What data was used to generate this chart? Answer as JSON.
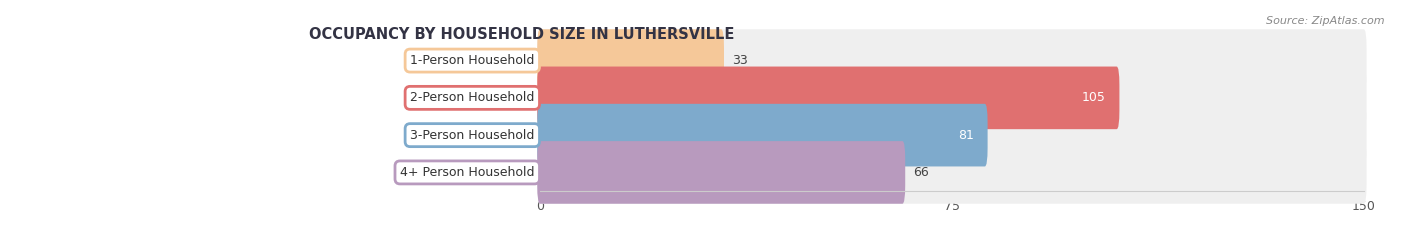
{
  "title": "OCCUPANCY BY HOUSEHOLD SIZE IN LUTHERSVILLE",
  "source": "Source: ZipAtlas.com",
  "categories": [
    "1-Person Household",
    "2-Person Household",
    "3-Person Household",
    "4+ Person Household"
  ],
  "values": [
    33,
    105,
    81,
    66
  ],
  "bar_colors": [
    "#f5c899",
    "#e07070",
    "#7eaacc",
    "#b89abe"
  ],
  "bar_bg_color": "#efefef",
  "xlim": [
    -42,
    150
  ],
  "xlim_data": [
    0,
    150
  ],
  "xticks": [
    0,
    75,
    150
  ],
  "figsize": [
    14.06,
    2.33
  ],
  "dpi": 100,
  "title_fontsize": 10.5,
  "bar_height": 0.68,
  "value_label_threshold": 80
}
